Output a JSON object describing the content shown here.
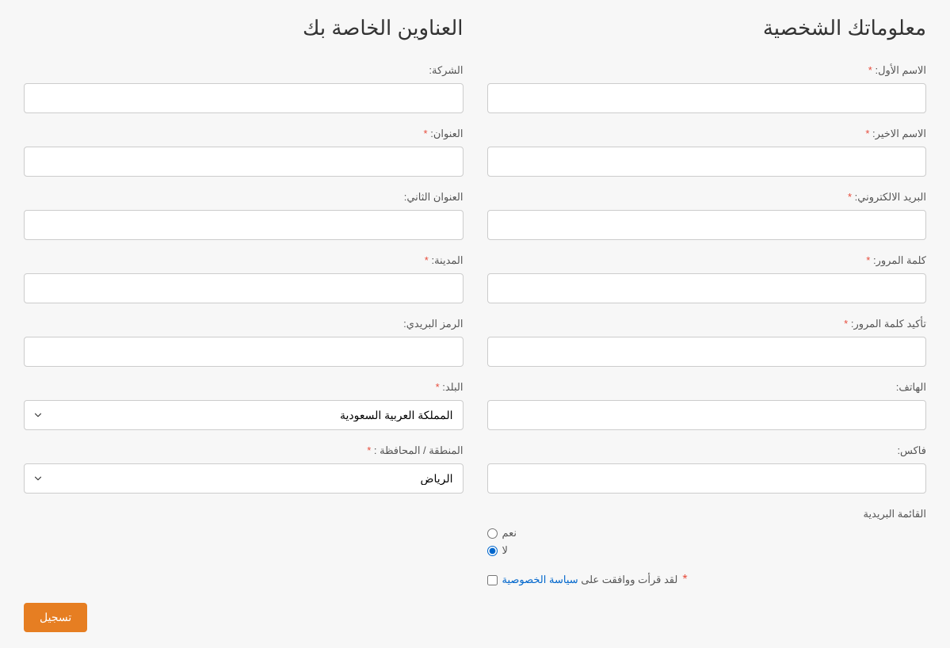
{
  "personal": {
    "heading": "معلوماتك الشخصية",
    "first_name_label": "الاسم الأول:",
    "last_name_label": "الاسم الاخير:",
    "email_label": "البريد الالكتروني:",
    "password_label": "كلمة المرور:",
    "confirm_password_label": "تأكيد كلمة المرور:",
    "phone_label": "الهاتف:",
    "fax_label": "فاكس:",
    "newsletter_label": "القائمة البريدية",
    "yes_label": "نعم",
    "no_label": "لا"
  },
  "address": {
    "heading": "العناوين الخاصة بك",
    "company_label": "الشركة:",
    "address1_label": "العنوان:",
    "address2_label": "العنوان الثاني:",
    "city_label": "المدينة:",
    "postcode_label": "الرمز البريدي:",
    "country_label": "البلد:",
    "country_value": "المملكة العربية السعودية",
    "region_label": "المنطقة / المحافظة :",
    "region_value": "الرياض"
  },
  "privacy": {
    "text": "لقد قرأت ووافقت على ",
    "link_text": "سياسة الخصوصية"
  },
  "submit_label": "تسجيل",
  "required_mark": "*"
}
